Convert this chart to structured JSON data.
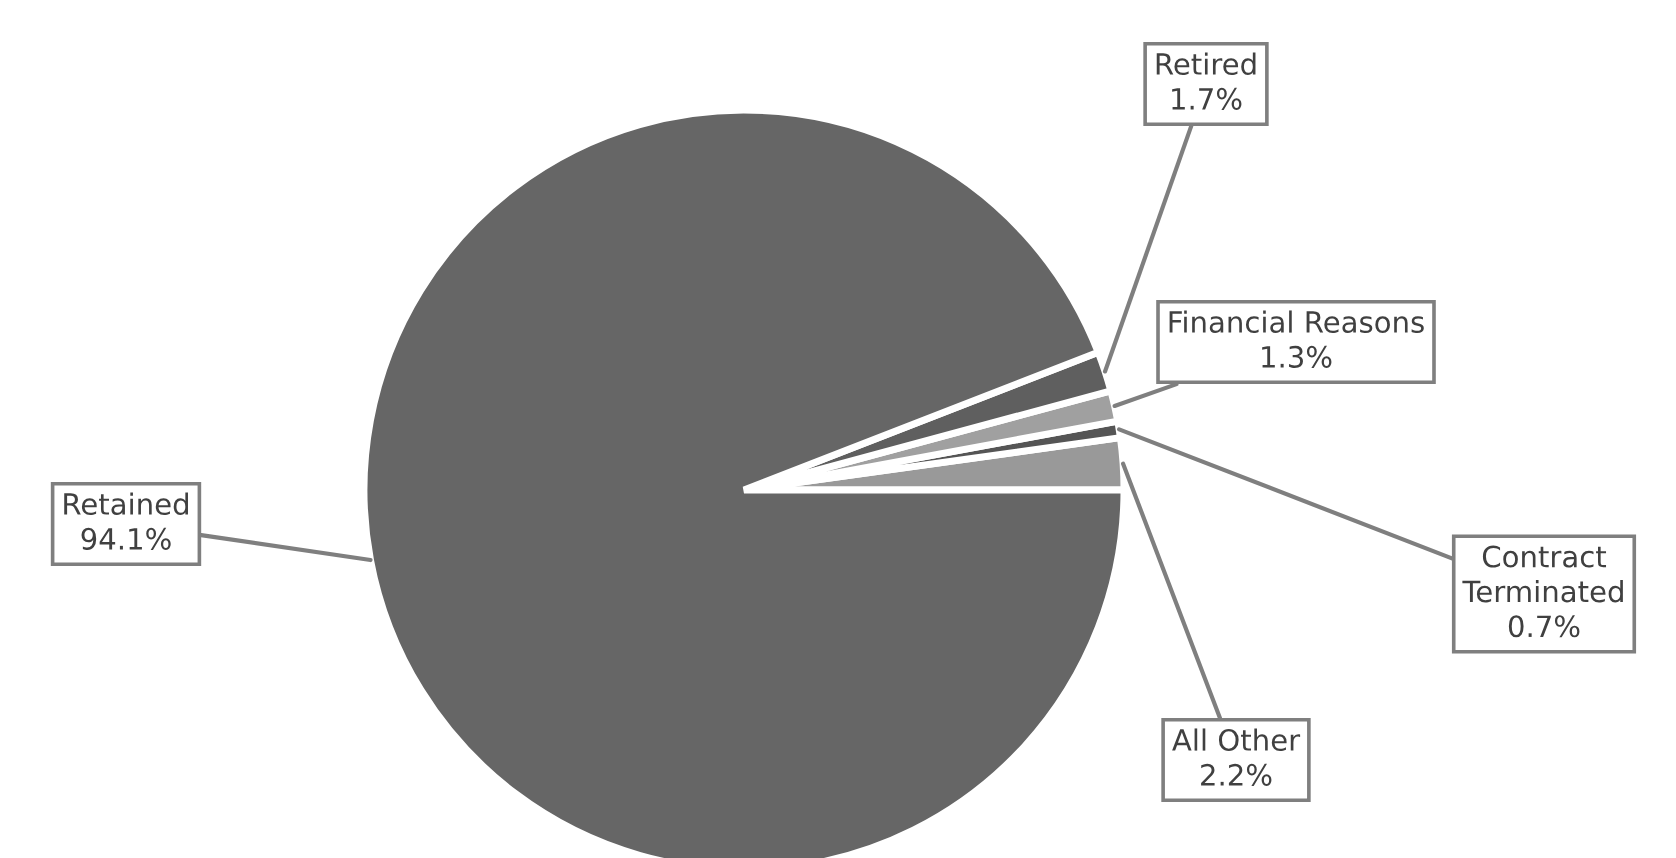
{
  "chart_data": {
    "type": "pie",
    "categories": [
      "All Other",
      "Contract Terminated",
      "Financial Reasons",
      "Retired",
      "Retained"
    ],
    "values": [
      2.2,
      0.7,
      1.3,
      1.7,
      94.1
    ],
    "value_labels": [
      "2.2%",
      "0.7%",
      "1.3%",
      "1.7%",
      "94.1%"
    ],
    "colors": [
      "#999999",
      "#555555",
      "#a0a0a0",
      "#5f5f5f",
      "#666666"
    ],
    "legend": false
  }
}
